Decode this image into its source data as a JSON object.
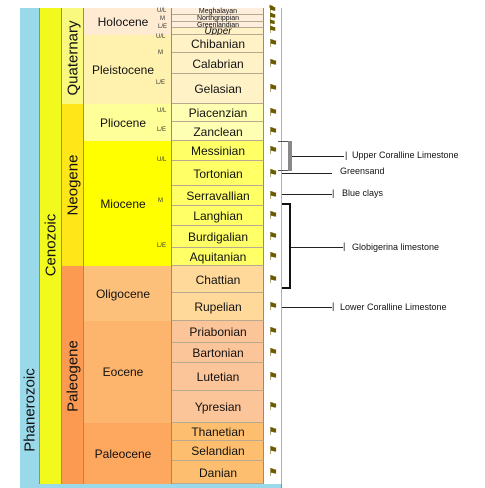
{
  "eon": "Phanerozoic",
  "era": "Cenozoic",
  "periods": [
    {
      "name": "Quaternary",
      "color": "#f9f97f"
    },
    {
      "name": "Neogene",
      "color": "#ffe619"
    },
    {
      "name": "Paleogene",
      "color": "#fd9a52"
    }
  ],
  "epochs": [
    "Holocene",
    "Pleistocene",
    "Pliocene",
    "Miocene",
    "Oligocene",
    "Eocene",
    "Paleocene"
  ],
  "stages": [
    "Meghalayan",
    "Northgrippian",
    "Greenlandian",
    "Upper",
    "Chibanian",
    "Calabrian",
    "Gelasian",
    "Piacenzian",
    "Zanclean",
    "Messinian",
    "Tortonian",
    "Serravallian",
    "Langhian",
    "Burdigalian",
    "Aquitanian",
    "Chattian",
    "Rupelian",
    "Priabonian",
    "Bartonian",
    "Lutetian",
    "Ypresian",
    "Thanetian",
    "Selandian",
    "Danian"
  ],
  "subdivisions": [
    "U/L",
    "M",
    "L/E",
    "U/L",
    "M",
    "L/E",
    "U/L",
    "L/E",
    "U/L",
    "M",
    "L/E"
  ],
  "annotations": [
    "Upper Coralline Limestone",
    "Greensand",
    "Blue clays",
    "Globigerina limestone",
    "Lower Coralline Limestone"
  ],
  "colors": {
    "eon": "#9ad9ea",
    "era": "#f2f91d",
    "quaternary": "#f9f97f",
    "neogene": "#ffe619",
    "paleogene": "#fd9a52",
    "holocene": "#feebd2",
    "pleistocene": "#fff2ae",
    "pliocene": "#ffff99",
    "miocene": "#ffff00",
    "oligocene": "#fdc07a",
    "eocene": "#fdb46c",
    "paleocene": "#fda75f"
  }
}
